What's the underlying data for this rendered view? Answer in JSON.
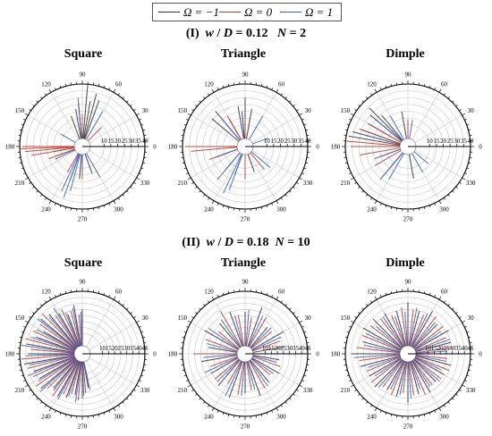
{
  "legend": {
    "items": [
      {
        "label": "Ω = −1",
        "color": "#333333"
      },
      {
        "label": "Ω = 0",
        "color": "#c0392b"
      },
      {
        "label": "Ω = 1",
        "color": "#3a5fcd"
      }
    ]
  },
  "sections": [
    {
      "number": "(I)",
      "w_var": "w",
      "d_var": "D",
      "ratio_text": " = 0.12",
      "n_var": "N",
      "n_text": " = 2"
    },
    {
      "number": "(II)",
      "w_var": "w",
      "d_var": "D",
      "ratio_text": " = 0.18",
      "n_var": "N",
      "n_text": " = 10"
    }
  ],
  "panel_titles": [
    "Square",
    "Triangle",
    "Dimple",
    "Square",
    "Triangle",
    "Dimple"
  ],
  "chart_data": [
    {
      "type": "polar",
      "title": "Square",
      "section": "(I)",
      "angle_ticks": [
        "0",
        "30",
        "60",
        "90",
        "120",
        "150",
        "180",
        "210",
        "240",
        "270",
        "300",
        "330"
      ],
      "radial_ticks": [
        "10",
        "15",
        "20",
        "25",
        "30",
        "35",
        "40"
      ],
      "rlim": [
        0,
        40
      ],
      "series": [
        {
          "name": "Ω = −1",
          "angles": [
            70,
            75,
            80,
            85,
            95,
            100,
            110,
            180,
            190,
            200,
            250,
            265,
            290
          ],
          "values": [
            30,
            34,
            28,
            40,
            26,
            22,
            18,
            14,
            16,
            14,
            20,
            18,
            15
          ]
        },
        {
          "name": "Ω = 0",
          "angles": [
            0,
            45,
            90,
            180,
            182,
            185,
            190,
            200,
            240,
            270
          ],
          "values": [
            6,
            14,
            18,
            38,
            40,
            36,
            32,
            20,
            16,
            18
          ]
        },
        {
          "name": "Ω = 1",
          "angles": [
            60,
            95,
            150,
            205,
            245,
            250,
            255,
            270,
            300
          ],
          "values": [
            24,
            30,
            12,
            16,
            30,
            34,
            28,
            12,
            20
          ]
        }
      ]
    },
    {
      "type": "polar",
      "title": "Triangle",
      "section": "(I)",
      "angle_ticks": [
        "0",
        "30",
        "60",
        "90",
        "120",
        "150",
        "180",
        "210",
        "240",
        "270",
        "300",
        "330"
      ],
      "radial_ticks": [
        "10",
        "15",
        "20",
        "25",
        "30",
        "35",
        "40"
      ],
      "rlim": [
        0,
        40
      ],
      "series": [
        {
          "name": "Ω = −1",
          "angles": [
            80,
            90,
            95,
            100,
            120,
            130,
            140,
            180,
            200,
            250,
            290
          ],
          "values": [
            22,
            30,
            20,
            24,
            18,
            28,
            26,
            14,
            18,
            16,
            14
          ]
        },
        {
          "name": "Ω = 0",
          "angles": [
            90,
            120,
            180,
            185,
            200,
            230,
            270,
            310
          ],
          "values": [
            16,
            20,
            38,
            34,
            22,
            18,
            18,
            16
          ]
        },
        {
          "name": "Ω = 1",
          "angles": [
            20,
            60,
            100,
            130,
            200,
            230,
            245,
            250,
            320
          ],
          "values": [
            12,
            20,
            16,
            24,
            16,
            26,
            32,
            28,
            18
          ]
        }
      ]
    },
    {
      "type": "polar",
      "title": "Dimple",
      "section": "(I)",
      "angle_ticks": [
        "0",
        "30",
        "60",
        "90",
        "120",
        "150",
        "180",
        "210",
        "240",
        "270",
        "300",
        "330"
      ],
      "radial_ticks": [
        "10",
        "15",
        "20",
        "25",
        "30",
        "35",
        "40"
      ],
      "rlim": [
        0,
        40
      ],
      "series": [
        {
          "name": "Ω = −1",
          "angles": [
            100,
            130,
            135,
            140,
            150,
            160,
            165,
            170,
            200,
            230,
            280
          ],
          "values": [
            20,
            24,
            34,
            30,
            28,
            30,
            36,
            38,
            16,
            16,
            18
          ]
        },
        {
          "name": "Ω = 0",
          "angles": [
            90,
            150,
            160,
            175,
            180,
            190,
            210,
            230
          ],
          "values": [
            14,
            26,
            32,
            40,
            36,
            30,
            22,
            24
          ]
        },
        {
          "name": "Ω = 1",
          "angles": [
            80,
            120,
            140,
            165,
            200,
            230,
            240,
            300,
            320
          ],
          "values": [
            14,
            20,
            24,
            26,
            20,
            26,
            22,
            16,
            14
          ]
        }
      ]
    },
    {
      "type": "polar",
      "title": "Square",
      "section": "(II)",
      "angle_ticks": [
        "0",
        "30",
        "60",
        "90",
        "120",
        "150",
        "180",
        "210",
        "240",
        "270",
        "300",
        "330"
      ],
      "radial_ticks": [
        "10",
        "15",
        "20",
        "25",
        "30",
        "35",
        "40",
        "45"
      ],
      "rlim": [
        0,
        45
      ],
      "series": [
        {
          "name": "Ω = −1",
          "angles": [
            90,
            100,
            110,
            120,
            130,
            140,
            150,
            160,
            170,
            180,
            190,
            200,
            210,
            220,
            230,
            240,
            250,
            260,
            270,
            280
          ],
          "values": [
            30,
            34,
            28,
            32,
            36,
            38,
            30,
            34,
            40,
            38,
            42,
            36,
            34,
            38,
            30,
            34,
            32,
            28,
            30,
            22
          ]
        },
        {
          "name": "Ω = 0",
          "angles": [
            95,
            105,
            115,
            125,
            135,
            145,
            155,
            165,
            175,
            185,
            195,
            205,
            215,
            225,
            235,
            245,
            255,
            265,
            275
          ],
          "values": [
            26,
            30,
            34,
            32,
            40,
            36,
            38,
            42,
            36,
            44,
            40,
            38,
            40,
            34,
            36,
            30,
            28,
            32,
            26
          ]
        },
        {
          "name": "Ω = 1",
          "angles": [
            92,
            102,
            112,
            122,
            132,
            142,
            152,
            162,
            172,
            182,
            192,
            202,
            212,
            222,
            232,
            242,
            252,
            262,
            272,
            282
          ],
          "values": [
            28,
            32,
            30,
            38,
            34,
            40,
            36,
            38,
            44,
            40,
            38,
            42,
            36,
            40,
            32,
            36,
            30,
            34,
            28,
            24
          ]
        }
      ]
    },
    {
      "type": "polar",
      "title": "Triangle",
      "section": "(II)",
      "angle_ticks": [
        "0",
        "30",
        "60",
        "90",
        "120",
        "150",
        "180",
        "210",
        "240",
        "270",
        "300",
        "330"
      ],
      "radial_ticks": [
        "10",
        "15",
        "20",
        "25",
        "30",
        "35",
        "40",
        "45"
      ],
      "rlim": [
        0,
        45
      ],
      "series": [
        {
          "name": "Ω = −1",
          "angles": [
            10,
            30,
            50,
            70,
            90,
            110,
            130,
            150,
            170,
            190,
            210,
            230,
            250,
            270,
            290,
            310,
            330,
            350
          ],
          "values": [
            26,
            30,
            22,
            34,
            28,
            30,
            26,
            32,
            24,
            30,
            26,
            28,
            32,
            26,
            30,
            24,
            26,
            22
          ]
        },
        {
          "name": "Ω = 0",
          "angles": [
            20,
            40,
            60,
            80,
            100,
            120,
            140,
            160,
            180,
            200,
            220,
            240,
            260,
            280,
            300,
            320,
            340
          ],
          "values": [
            24,
            22,
            28,
            24,
            26,
            34,
            22,
            28,
            36,
            24,
            26,
            22,
            28,
            24,
            26,
            20,
            24
          ]
        },
        {
          "name": "Ω = 1",
          "angles": [
            0,
            25,
            45,
            65,
            85,
            105,
            125,
            145,
            165,
            185,
            205,
            225,
            245,
            265,
            285,
            305,
            325,
            345
          ],
          "values": [
            22,
            26,
            24,
            28,
            30,
            26,
            28,
            30,
            26,
            28,
            30,
            26,
            32,
            28,
            24,
            26,
            22,
            20
          ]
        }
      ]
    },
    {
      "type": "polar",
      "title": "Dimple",
      "section": "(II)",
      "angle_ticks": [
        "0",
        "30",
        "60",
        "90",
        "120",
        "150",
        "180",
        "210",
        "240",
        "270",
        "300",
        "330"
      ],
      "radial_ticks": [
        "10",
        "15",
        "20",
        "25",
        "30",
        "35",
        "40",
        "45"
      ],
      "rlim": [
        0,
        45
      ],
      "series": [
        {
          "name": "Ω = −1",
          "angles": [
            0,
            15,
            30,
            45,
            60,
            75,
            90,
            105,
            120,
            135,
            150,
            165,
            180,
            195,
            210,
            225,
            240,
            255,
            270,
            285,
            300,
            315,
            330,
            345
          ],
          "values": [
            34,
            30,
            32,
            28,
            34,
            30,
            36,
            30,
            32,
            34,
            36,
            32,
            40,
            34,
            30,
            32,
            28,
            30,
            34,
            28,
            30,
            26,
            28,
            30
          ]
        },
        {
          "name": "Ω = 0",
          "angles": [
            8,
            23,
            38,
            53,
            68,
            83,
            98,
            113,
            128,
            143,
            158,
            173,
            188,
            203,
            218,
            233,
            248,
            263,
            278,
            293,
            308,
            323,
            338,
            353
          ],
          "values": [
            30,
            28,
            30,
            32,
            28,
            30,
            32,
            28,
            30,
            32,
            34,
            36,
            34,
            30,
            32,
            28,
            30,
            26,
            28,
            30,
            26,
            28,
            30,
            26
          ]
        },
        {
          "name": "Ω = 1",
          "angles": [
            4,
            19,
            34,
            49,
            64,
            79,
            94,
            109,
            124,
            139,
            154,
            169,
            184,
            199,
            214,
            229,
            244,
            259,
            274,
            289,
            304,
            319,
            334,
            349
          ],
          "values": [
            26,
            30,
            26,
            28,
            30,
            32,
            28,
            26,
            30,
            28,
            32,
            30,
            38,
            28,
            26,
            30,
            26,
            28,
            30,
            24,
            26,
            28,
            24,
            26
          ]
        }
      ]
    }
  ]
}
